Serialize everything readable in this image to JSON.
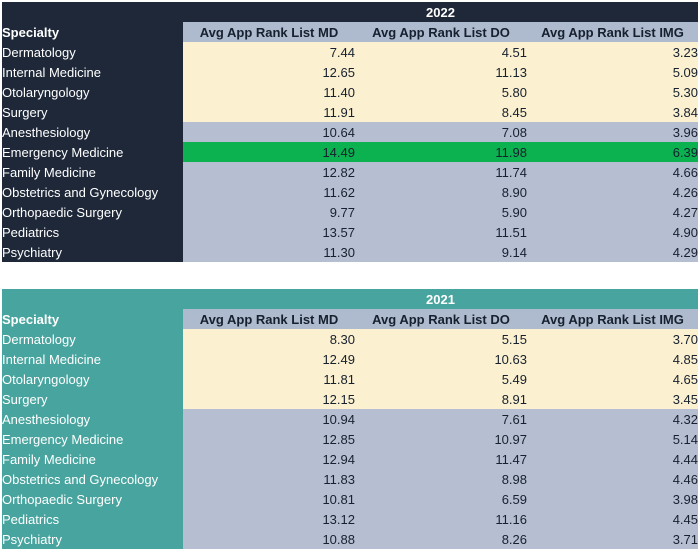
{
  "colors": {
    "navy": "#1E2838",
    "teal": "#48A49E",
    "header_gray": "#AEBACE",
    "row_gray": "#B6BFD2",
    "cream": "#FBF0D0",
    "green_highlight": "#0CB150"
  },
  "tables": [
    {
      "year": "2022",
      "specialty_header": "Specialty",
      "columns": [
        "Avg App Rank List MD",
        "Avg App Rank List DO",
        "Avg App Rank List IMG"
      ],
      "rows": [
        {
          "specialty": "Dermatology",
          "md": "7.44",
          "do": "4.51",
          "img": "3.23",
          "band": "cream"
        },
        {
          "specialty": "Internal Medicine",
          "md": "12.65",
          "do": "11.13",
          "img": "5.09",
          "band": "cream"
        },
        {
          "specialty": "Otolaryngology",
          "md": "11.40",
          "do": "5.80",
          "img": "5.30",
          "band": "cream"
        },
        {
          "specialty": "Surgery",
          "md": "11.91",
          "do": "8.45",
          "img": "3.84",
          "band": "cream"
        },
        {
          "specialty": "Anesthesiology",
          "md": "10.64",
          "do": "7.08",
          "img": "3.96",
          "band": "gray"
        },
        {
          "specialty": "Emergency Medicine",
          "md": "14.49",
          "do": "11.98",
          "img": "6.39",
          "band": "green"
        },
        {
          "specialty": "Family Medicine",
          "md": "12.82",
          "do": "11.74",
          "img": "4.66",
          "band": "gray"
        },
        {
          "specialty": "Obstetrics and Gynecology",
          "md": "11.62",
          "do": "8.90",
          "img": "4.26",
          "band": "gray"
        },
        {
          "specialty": "Orthopaedic Surgery",
          "md": "9.77",
          "do": "5.90",
          "img": "4.27",
          "band": "gray"
        },
        {
          "specialty": "Pediatrics",
          "md": "13.57",
          "do": "11.51",
          "img": "4.90",
          "band": "gray"
        },
        {
          "specialty": "Psychiatry",
          "md": "11.30",
          "do": "9.14",
          "img": "4.29",
          "band": "gray"
        }
      ]
    },
    {
      "year": "2021",
      "specialty_header": "Specialty",
      "columns": [
        "Avg App Rank List MD",
        "Avg App Rank List DO",
        "Avg App Rank List IMG"
      ],
      "rows": [
        {
          "specialty": "Dermatology",
          "md": "8.30",
          "do": "5.15",
          "img": "3.70",
          "band": "cream"
        },
        {
          "specialty": "Internal Medicine",
          "md": "12.49",
          "do": "10.63",
          "img": "4.85",
          "band": "cream"
        },
        {
          "specialty": "Otolaryngology",
          "md": "11.81",
          "do": "5.49",
          "img": "4.65",
          "band": "cream"
        },
        {
          "specialty": "Surgery",
          "md": "12.15",
          "do": "8.91",
          "img": "3.45",
          "band": "cream"
        },
        {
          "specialty": "Anesthesiology",
          "md": "10.94",
          "do": "7.61",
          "img": "4.32",
          "band": "gray"
        },
        {
          "specialty": "Emergency Medicine",
          "md": "12.85",
          "do": "10.97",
          "img": "5.14",
          "band": "gray"
        },
        {
          "specialty": "Family Medicine",
          "md": "12.94",
          "do": "11.47",
          "img": "4.44",
          "band": "gray"
        },
        {
          "specialty": "Obstetrics and Gynecology",
          "md": "11.83",
          "do": "8.98",
          "img": "4.46",
          "band": "gray"
        },
        {
          "specialty": "Orthopaedic Surgery",
          "md": "10.81",
          "do": "6.59",
          "img": "3.98",
          "band": "gray"
        },
        {
          "specialty": "Pediatrics",
          "md": "13.12",
          "do": "11.16",
          "img": "4.45",
          "band": "gray"
        },
        {
          "specialty": "Psychiatry",
          "md": "10.88",
          "do": "8.26",
          "img": "3.71",
          "band": "gray"
        }
      ]
    }
  ]
}
